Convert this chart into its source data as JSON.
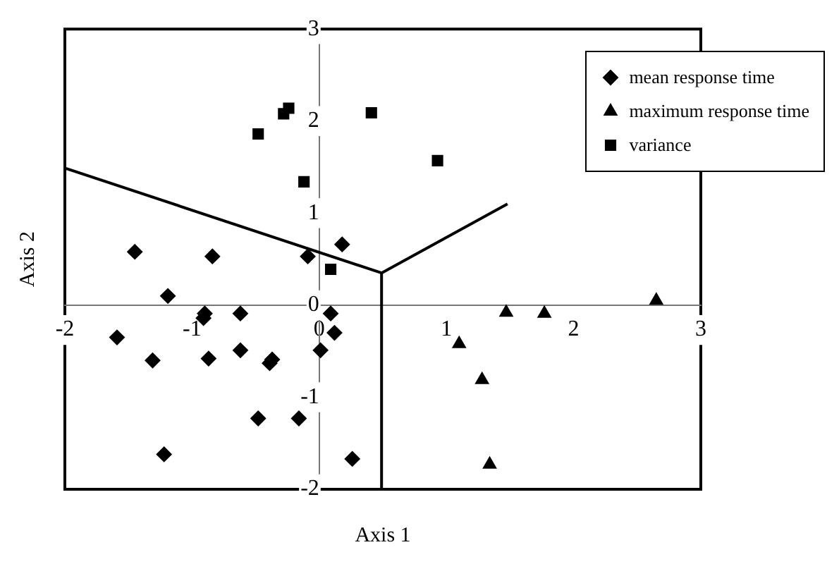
{
  "chart_data": {
    "type": "scatter",
    "xlabel": "Axis 1",
    "ylabel": "Axis 2",
    "xlim": [
      -2,
      3
    ],
    "ylim": [
      -2,
      3
    ],
    "xticks": [
      -2,
      -1,
      0,
      1,
      2,
      3
    ],
    "yticks": [
      -2,
      -1,
      0,
      1,
      2,
      3
    ],
    "grid": false,
    "legend": "top right",
    "series": [
      {
        "name": "mean response time",
        "color": "#000000",
        "marker": "diamond",
        "x": [
          -1.45,
          -0.84,
          -0.09,
          0.18,
          -1.19,
          -0.9,
          -0.91,
          -0.62,
          -1.59,
          -1.31,
          -0.87,
          -0.62,
          -0.39,
          -0.37,
          0.01,
          0.09,
          0.12,
          -0.48,
          -0.16,
          -1.22,
          0.26
        ],
        "values": [
          0.58,
          0.53,
          0.53,
          0.66,
          0.1,
          -0.09,
          -0.14,
          -0.09,
          -0.35,
          -0.6,
          -0.58,
          -0.49,
          -0.63,
          -0.59,
          -0.49,
          -0.09,
          -0.3,
          -1.23,
          -1.23,
          -1.62,
          -1.67
        ]
      },
      {
        "name": "maximum response time",
        "color": "#000000",
        "marker": "triangle",
        "x": [
          1.1,
          1.47,
          1.77,
          2.65,
          1.28,
          1.34
        ],
        "values": [
          -0.42,
          -0.08,
          -0.09,
          0.05,
          -0.81,
          -1.73
        ]
      },
      {
        "name": "variance",
        "color": "#000000",
        "marker": "square",
        "x": [
          -0.48,
          -0.28,
          -0.24,
          0.41,
          -0.12,
          0.09,
          0.93
        ],
        "values": [
          1.86,
          2.08,
          2.14,
          2.09,
          1.34,
          0.39,
          1.57
        ]
      },
      {
        "type": "line",
        "color": "#000000",
        "marker": "none",
        "x": [
          -2,
          0.49
        ],
        "values": [
          1.49,
          0.35
        ]
      },
      {
        "type": "line",
        "color": "#000000",
        "marker": "none",
        "x": [
          0.49,
          0.49
        ],
        "values": [
          0.35,
          -2
        ]
      },
      {
        "type": "line",
        "color": "#000000",
        "marker": "none",
        "x": [
          0.49,
          1.48
        ],
        "values": [
          0.35,
          1.1
        ]
      }
    ]
  }
}
